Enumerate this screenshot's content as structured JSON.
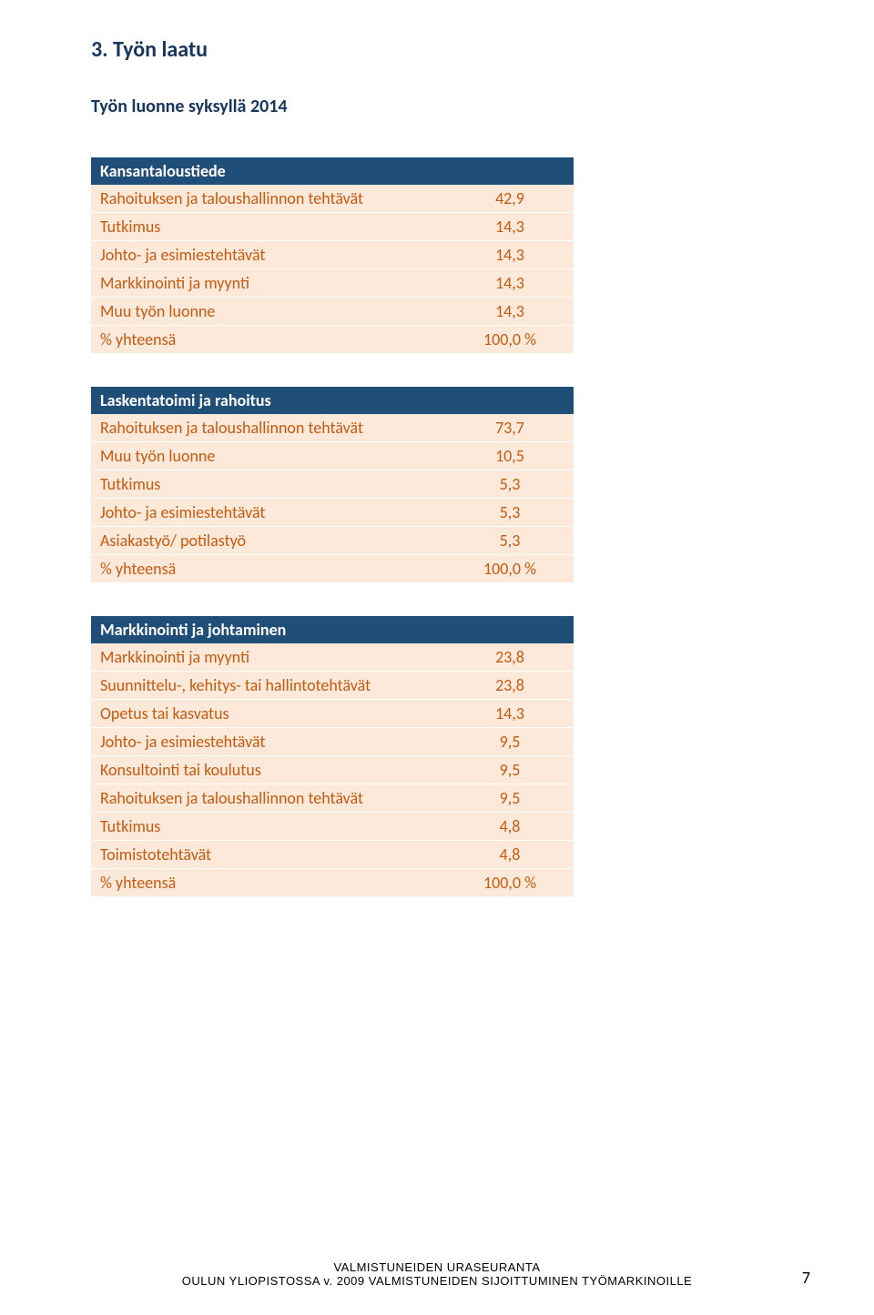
{
  "section_num_title": "3. Työn laatu",
  "subtitle": "Työn luonne syksyllä 2014",
  "table_colors": {
    "header_bg": "#1f4e79",
    "header_fg": "#ffffff",
    "row_bg": "#fde9d9",
    "row_fg": "#c55a11"
  },
  "tables": [
    {
      "title": "Kansantaloustiede",
      "rows": [
        {
          "label": "Rahoituksen ja taloushallinnon tehtävät",
          "value": "42,9"
        },
        {
          "label": "Tutkimus",
          "value": "14,3"
        },
        {
          "label": "Johto- ja esimiestehtävät",
          "value": "14,3"
        },
        {
          "label": "Markkinointi ja myynti",
          "value": "14,3"
        },
        {
          "label": "Muu työn luonne",
          "value": "14,3"
        },
        {
          "label": "% yhteensä",
          "value": "100,0 %"
        }
      ]
    },
    {
      "title": "Laskentatoimi ja rahoitus",
      "rows": [
        {
          "label": "Rahoituksen ja taloushallinnon tehtävät",
          "value": "73,7"
        },
        {
          "label": "Muu työn luonne",
          "value": "10,5"
        },
        {
          "label": "Tutkimus",
          "value": "5,3"
        },
        {
          "label": "Johto- ja esimiestehtävät",
          "value": "5,3"
        },
        {
          "label": "Asiakastyö/ potilastyö",
          "value": "5,3"
        },
        {
          "label": "% yhteensä",
          "value": "100,0 %"
        }
      ]
    },
    {
      "title": "Markkinointi ja johtaminen",
      "rows": [
        {
          "label": "Markkinointi ja myynti",
          "value": "23,8"
        },
        {
          "label": "Suunnittelu-, kehitys- tai hallintotehtävät",
          "value": "23,8"
        },
        {
          "label": "Opetus tai kasvatus",
          "value": "14,3"
        },
        {
          "label": "Johto- ja esimiestehtävät",
          "value": "9,5"
        },
        {
          "label": "Konsultointi tai koulutus",
          "value": "9,5"
        },
        {
          "label": "Rahoituksen ja taloushallinnon tehtävät",
          "value": "9,5"
        },
        {
          "label": "Tutkimus",
          "value": "4,8"
        },
        {
          "label": "Toimistotehtävät",
          "value": "4,8"
        },
        {
          "label": "% yhteensä",
          "value": "100,0 %"
        }
      ]
    }
  ],
  "footer": {
    "line1": "VALMISTUNEIDEN URASEURANTA",
    "line2": "OULUN YLIOPISTOSSA v. 2009 VALMISTUNEIDEN SIJOITTUMINEN TYÖMARKINOILLE"
  },
  "page_number": "7"
}
